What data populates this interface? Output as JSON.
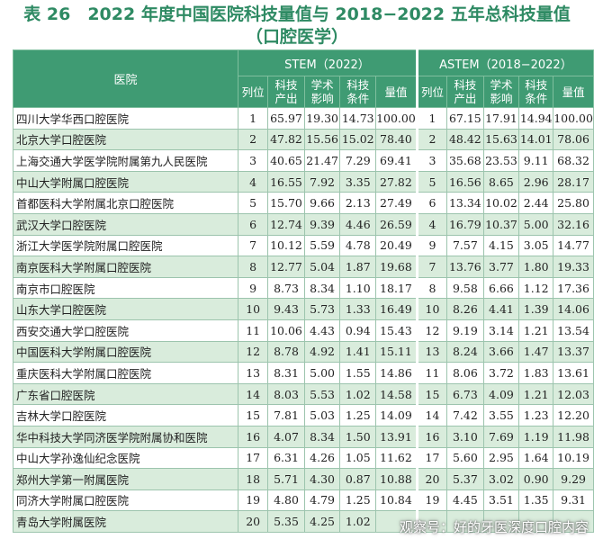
{
  "title_line1": "表 26　2022 年度中国医院科技量值与 2018−2022 五年总科技量值",
  "title_line2": "（口腔医学）",
  "header": {
    "hospital": "医院",
    "group1": "STEM（2022）",
    "group2": "ASTEM（2018−2022）",
    "rank": "列位",
    "output_1": "科技",
    "output_2": "产出",
    "impact_1": "学术",
    "impact_2": "影响",
    "cond_1": "科技",
    "cond_2": "条件",
    "value": "量值"
  },
  "rows": [
    {
      "name": "四川大学华西口腔医院",
      "r1": "1",
      "a": "65.97",
      "b": "19.30",
      "c": "14.73",
      "d": "100.00",
      "r2": "1",
      "e": "67.15",
      "f": "17.91",
      "g": "14.94",
      "h": "100.00"
    },
    {
      "name": "北京大学口腔医院",
      "r1": "2",
      "a": "47.82",
      "b": "15.56",
      "c": "15.02",
      "d": "78.40",
      "r2": "2",
      "e": "48.42",
      "f": "15.63",
      "g": "14.01",
      "h": "78.06"
    },
    {
      "name": "上海交通大学医学院附属第九人民医院",
      "r1": "3",
      "a": "40.65",
      "b": "21.47",
      "c": "7.29",
      "d": "69.41",
      "r2": "3",
      "e": "35.68",
      "f": "23.53",
      "g": "9.11",
      "h": "68.32"
    },
    {
      "name": "中山大学附属口腔医院",
      "r1": "4",
      "a": "16.55",
      "b": "7.92",
      "c": "3.35",
      "d": "27.82",
      "r2": "5",
      "e": "16.56",
      "f": "8.65",
      "g": "2.96",
      "h": "28.17"
    },
    {
      "name": "首都医科大学附属北京口腔医院",
      "r1": "5",
      "a": "15.70",
      "b": "9.66",
      "c": "2.13",
      "d": "27.49",
      "r2": "6",
      "e": "13.34",
      "f": "10.02",
      "g": "2.44",
      "h": "25.80"
    },
    {
      "name": "武汉大学口腔医院",
      "r1": "6",
      "a": "12.74",
      "b": "9.39",
      "c": "4.46",
      "d": "26.59",
      "r2": "4",
      "e": "16.79",
      "f": "10.37",
      "g": "5.00",
      "h": "32.16"
    },
    {
      "name": "浙江大学医学院附属口腔医院",
      "r1": "7",
      "a": "10.12",
      "b": "5.59",
      "c": "4.78",
      "d": "20.49",
      "r2": "9",
      "e": "7.57",
      "f": "4.15",
      "g": "3.05",
      "h": "14.77"
    },
    {
      "name": "南京医科大学附属口腔医院",
      "r1": "8",
      "a": "12.77",
      "b": "5.04",
      "c": "1.87",
      "d": "19.68",
      "r2": "7",
      "e": "13.76",
      "f": "3.77",
      "g": "1.80",
      "h": "19.33"
    },
    {
      "name": "南京市口腔医院",
      "r1": "9",
      "a": "8.73",
      "b": "8.34",
      "c": "1.10",
      "d": "18.17",
      "r2": "8",
      "e": "9.58",
      "f": "6.66",
      "g": "1.12",
      "h": "17.36"
    },
    {
      "name": "山东大学口腔医院",
      "r1": "10",
      "a": "9.43",
      "b": "5.73",
      "c": "1.33",
      "d": "16.49",
      "r2": "10",
      "e": "8.26",
      "f": "4.41",
      "g": "1.39",
      "h": "14.06"
    },
    {
      "name": "西安交通大学口腔医院",
      "r1": "11",
      "a": "10.06",
      "b": "4.43",
      "c": "0.94",
      "d": "15.43",
      "r2": "12",
      "e": "9.19",
      "f": "3.14",
      "g": "1.21",
      "h": "13.54"
    },
    {
      "name": "中国医科大学附属口腔医院",
      "r1": "12",
      "a": "8.78",
      "b": "4.92",
      "c": "1.41",
      "d": "15.11",
      "r2": "13",
      "e": "8.24",
      "f": "3.66",
      "g": "1.47",
      "h": "13.37"
    },
    {
      "name": "重庆医科大学附属口腔医院",
      "r1": "13",
      "a": "8.31",
      "b": "5.00",
      "c": "1.55",
      "d": "14.86",
      "r2": "11",
      "e": "8.06",
      "f": "3.72",
      "g": "1.83",
      "h": "13.61"
    },
    {
      "name": "广东省口腔医院",
      "r1": "14",
      "a": "8.03",
      "b": "5.53",
      "c": "1.02",
      "d": "14.58",
      "r2": "15",
      "e": "6.73",
      "f": "4.09",
      "g": "1.21",
      "h": "12.03"
    },
    {
      "name": "吉林大学口腔医院",
      "r1": "15",
      "a": "7.81",
      "b": "5.03",
      "c": "1.25",
      "d": "14.09",
      "r2": "14",
      "e": "7.42",
      "f": "3.55",
      "g": "1.23",
      "h": "12.20"
    },
    {
      "name": "华中科技大学同济医学院附属协和医院",
      "r1": "16",
      "a": "4.07",
      "b": "8.34",
      "c": "1.50",
      "d": "13.91",
      "r2": "16",
      "e": "3.10",
      "f": "7.69",
      "g": "1.19",
      "h": "11.98"
    },
    {
      "name": "中山大学孙逸仙纪念医院",
      "r1": "17",
      "a": "6.31",
      "b": "4.26",
      "c": "1.05",
      "d": "11.62",
      "r2": "17",
      "e": "5.60",
      "f": "2.95",
      "g": "1.64",
      "h": "10.19"
    },
    {
      "name": "郑州大学第一附属医院",
      "r1": "18",
      "a": "5.71",
      "b": "4.30",
      "c": "0.87",
      "d": "10.88",
      "r2": "20",
      "e": "5.37",
      "f": "3.02",
      "g": "0.90",
      "h": "9.29"
    },
    {
      "name": "同济大学附属口腔医院",
      "r1": "19",
      "a": "4.80",
      "b": "4.79",
      "c": "1.25",
      "d": "10.84",
      "r2": "19",
      "e": "4.45",
      "f": "3.51",
      "g": "1.35",
      "h": "9.31"
    },
    {
      "name": "青岛大学附属医院",
      "r1": "20",
      "a": "5.35",
      "b": "4.25",
      "c": "1.02",
      "d": "",
      "r2": "",
      "e": "",
      "f": "",
      "g": "",
      "h": ""
    }
  ],
  "watermark": "观察号：好的牙医深度口腔内容"
}
